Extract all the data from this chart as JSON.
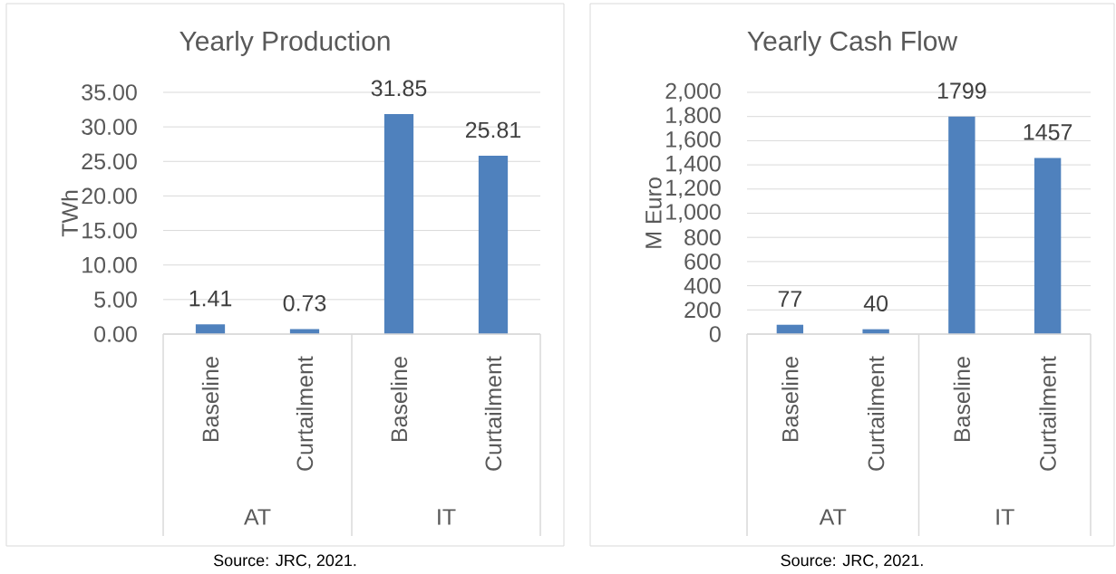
{
  "chart_data": [
    {
      "type": "bar",
      "title": "Yearly Production",
      "ylabel": "TWh",
      "categories": [
        "Baseline",
        "Curtailment",
        "Baseline",
        "Curtailment"
      ],
      "values": [
        1.41,
        0.73,
        31.85,
        25.81
      ],
      "color": "#4f81bd",
      "ylim": [
        0,
        35
      ],
      "yticks": [
        {
          "value": 0,
          "label": "0.00"
        },
        {
          "value": 5,
          "label": "5.00"
        },
        {
          "value": 10,
          "label": "10.00"
        },
        {
          "value": 15,
          "label": "15.00"
        },
        {
          "value": 20,
          "label": "20.00"
        },
        {
          "value": 25,
          "label": "25.00"
        },
        {
          "value": 30,
          "label": "30.00"
        },
        {
          "value": 35,
          "label": "35.00"
        }
      ],
      "grid": "y",
      "data_labels": true,
      "annotations": [
        "AT",
        "IT",
        "Source: JRC, 2021."
      ]
    },
    {
      "type": "bar",
      "title": "Yearly Cash Flow",
      "ylabel": "M Euro",
      "categories": [
        "Baseline",
        "Curtailment",
        "Baseline",
        "Curtailment"
      ],
      "values": [
        77,
        40,
        1799,
        1457
      ],
      "color": "#4f81bd",
      "ylim": [
        0,
        2000
      ],
      "yticks": [
        0,
        200,
        400,
        600,
        800,
        {
          "value": 1000,
          "label": "1,000"
        },
        {
          "value": 1200,
          "label": "1,200"
        },
        {
          "value": 1400,
          "label": "1,400"
        },
        {
          "value": 1600,
          "label": "1,600"
        },
        {
          "value": 1800,
          "label": "1,800"
        },
        {
          "value": 2000,
          "label": "2,000"
        }
      ],
      "grid": "y",
      "data_labels": true,
      "annotations": [
        "AT",
        "IT",
        "Source: JRC, 2021."
      ]
    }
  ]
}
